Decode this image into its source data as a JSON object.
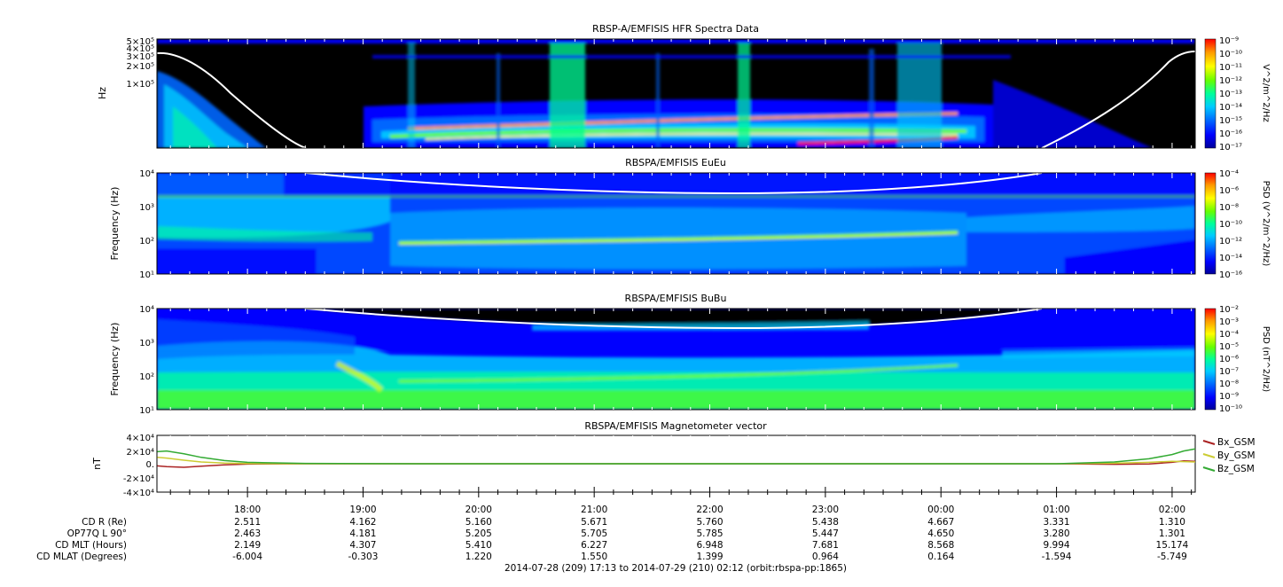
{
  "colors": {
    "spectrum": [
      "#000099",
      "#0000ff",
      "#0066ff",
      "#00ccff",
      "#00ff99",
      "#66ff00",
      "#ffff00",
      "#ff9900",
      "#ff0000"
    ],
    "background": "#000000",
    "frame": "#000000"
  },
  "chart_data": [
    {
      "type": "heatmap",
      "title": "RBSP-A/EMFISIS  HFR Spectra Data",
      "ylabel": "Hz",
      "yscale": "log",
      "y_ticks": [
        "5×10⁵",
        "4×10⁵",
        "3×10⁵",
        "2×10⁵",
        "1×10⁵"
      ],
      "colorbar_label": "V^2/m^2/Hz",
      "colorbar_ticks": [
        "10⁻⁹",
        "10⁻¹⁰",
        "10⁻¹¹",
        "10⁻¹²",
        "10⁻¹³",
        "10⁻¹⁴",
        "10⁻¹⁵",
        "10⁻¹⁶",
        "10⁻¹⁷"
      ],
      "colorbar_range": [
        1e-17,
        1e-09
      ],
      "colorscale": "log"
    },
    {
      "type": "heatmap",
      "title": "RBSPA/EMFISIS  EuEu",
      "ylabel": "Frequency (Hz)",
      "yscale": "log",
      "ylim": [
        10,
        10000
      ],
      "y_ticks": [
        "10⁴",
        "10³",
        "10²",
        "10¹"
      ],
      "colorbar_label": "PSD (V^2/m^2/Hz)",
      "colorbar_ticks": [
        "10⁻⁴",
        "10⁻⁶",
        "10⁻⁸",
        "10⁻¹⁰",
        "10⁻¹²",
        "10⁻¹⁴",
        "10⁻¹⁶"
      ],
      "colorbar_range": [
        1e-16,
        0.0001
      ],
      "colorscale": "log"
    },
    {
      "type": "heatmap",
      "title": "RBSPA/EMFISIS  BuBu",
      "ylabel": "Frequency (Hz)",
      "yscale": "log",
      "ylim": [
        10,
        10000
      ],
      "y_ticks": [
        "10⁴",
        "10³",
        "10²",
        "10¹"
      ],
      "colorbar_label": "PSD (nT^2/Hz)",
      "colorbar_ticks": [
        "10⁻²",
        "10⁻³",
        "10⁻⁴",
        "10⁻⁵",
        "10⁻⁶",
        "10⁻⁷",
        "10⁻⁸",
        "10⁻⁹",
        "10⁻¹⁰"
      ],
      "colorbar_range": [
        1e-10,
        0.01
      ],
      "colorscale": "log"
    },
    {
      "type": "line",
      "title": "RBSPA/EMFISIS  Magnetometer vector",
      "ylabel": "nT",
      "ylim": [
        -40000,
        40000
      ],
      "y_ticks": [
        "4×10⁴",
        "2×10⁴",
        "0.",
        "-2×10⁴",
        "-4×10⁴"
      ],
      "legend_placement": "right",
      "x_hours": [
        17.22,
        17.3,
        17.45,
        17.6,
        17.8,
        18.0,
        18.5,
        19.5,
        21.0,
        23.0,
        25.0,
        25.5,
        25.8,
        26.0,
        26.1,
        26.2
      ],
      "series": [
        {
          "name": "Bx_GSM",
          "color": "#aa2222",
          "values": [
            -3000,
            -4000,
            -5000,
            -3500,
            -1500,
            -500,
            0,
            0,
            0,
            0,
            0,
            -800,
            -300,
            2000,
            4000,
            3500
          ]
        },
        {
          "name": "By_GSM",
          "color": "#cccc33",
          "values": [
            9000,
            8000,
            5000,
            2500,
            1000,
            300,
            0,
            0,
            0,
            0,
            0,
            800,
            2000,
            3500,
            3000,
            2500
          ]
        },
        {
          "name": "Bz_GSM",
          "color": "#33aa33",
          "values": [
            17000,
            18000,
            14000,
            9000,
            4500,
            2000,
            500,
            0,
            0,
            0,
            0,
            2500,
            7000,
            13000,
            18000,
            21000
          ]
        }
      ]
    }
  ],
  "x_axis": {
    "ticks": [
      "18:00",
      "19:00",
      "20:00",
      "21:00",
      "22:00",
      "23:00",
      "00:00",
      "01:00",
      "02:00"
    ],
    "rows": [
      {
        "label": "CD R (Re)",
        "values": [
          "2.511",
          "4.162",
          "5.160",
          "5.671",
          "5.760",
          "5.438",
          "4.667",
          "3.331",
          "1.310"
        ]
      },
      {
        "label": "OP77Q L 90°",
        "values": [
          "2.463",
          "4.181",
          "5.205",
          "5.705",
          "5.785",
          "5.447",
          "4.650",
          "3.280",
          "1.301"
        ]
      },
      {
        "label": "CD MLT (Hours)",
        "values": [
          "2.149",
          "4.307",
          "5.410",
          "6.227",
          "6.948",
          "7.681",
          "8.568",
          "9.994",
          "15.174"
        ]
      },
      {
        "label": "CD MLAT (Degrees)",
        "values": [
          "-6.004",
          "-0.303",
          "1.220",
          "1.550",
          "1.399",
          "0.964",
          "0.164",
          "-1.594",
          "-5.749"
        ]
      }
    ],
    "range_caption": "2014-07-28 (209) 17:13 to 2014-07-29 (210) 02:12 (orbit:rbspa-pp:1865)"
  }
}
